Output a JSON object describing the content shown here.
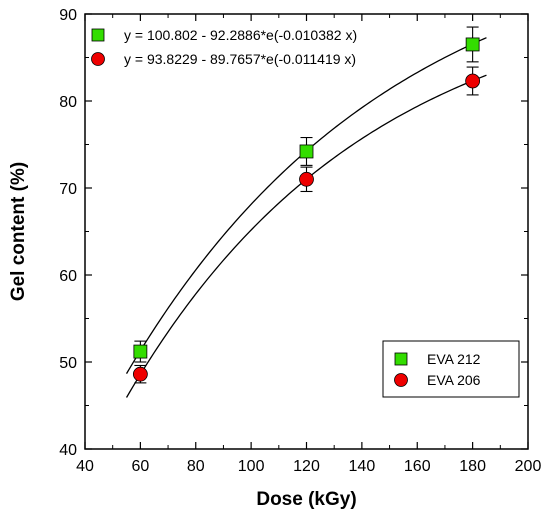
{
  "chart_data": {
    "type": "scatter",
    "xlabel": "Dose (kGy)",
    "ylabel": "Gel content (%)",
    "xlim": [
      40,
      200
    ],
    "ylim": [
      40,
      90
    ],
    "xticks": [
      40,
      60,
      80,
      100,
      120,
      140,
      160,
      180,
      200
    ],
    "yticks": [
      40,
      50,
      60,
      70,
      80,
      90
    ],
    "grid": false,
    "series": [
      {
        "name": "EVA 212",
        "marker": "square",
        "color": "#33dd00",
        "x": [
          60,
          120,
          180
        ],
        "y": [
          51.2,
          74.2,
          86.5
        ],
        "error": [
          1.2,
          1.6,
          2.0
        ],
        "fit_equation": "y = 100.802 - 92.2886*e(-0.010382 x)",
        "fit": {
          "a": 100.802,
          "b": 92.2886,
          "k": 0.010382,
          "x_range": [
            55,
            185
          ]
        }
      },
      {
        "name": "EVA 206",
        "marker": "circle",
        "color": "#ee0000",
        "x": [
          60,
          120,
          180
        ],
        "y": [
          48.6,
          71.0,
          82.3
        ],
        "error": [
          1.0,
          1.4,
          1.6
        ],
        "fit_equation": "y = 93.8229 - 89.7657*e(-0.011419 x)",
        "fit": {
          "a": 93.8229,
          "b": 89.7657,
          "k": 0.011419,
          "x_range": [
            55,
            185
          ]
        }
      }
    ],
    "equation_box_position": "top-left",
    "legend_position": "bottom-right"
  }
}
